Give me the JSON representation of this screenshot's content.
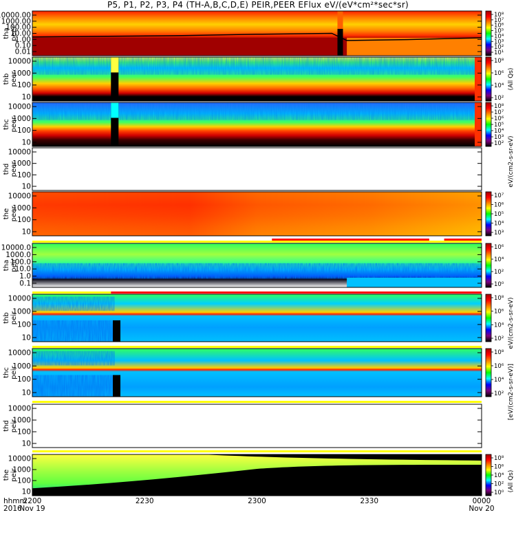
{
  "title": "P5, P1, P2, P3, P4 (TH-A,B,C,D,E) PEIR,PEER EFlux eV/(eV*cm²*sec*sr)",
  "colorbar_unit_labels": [
    "(All Qs)",
    "eV/(cm2-s-sr-eV)",
    "[eV/(cm2-s-sr-eV)]",
    "eV/(cm2-s-sr-eV)",
    "(All Qs)"
  ],
  "chart_data": {
    "type": "heatmap",
    "x_axis": {
      "tick_labels": [
        "2200",
        "2230",
        "2300",
        "2330",
        "0000"
      ],
      "x_values_minutes_after_2200": [
        0,
        30,
        60,
        90,
        120
      ],
      "row_labels": [
        "hhmm",
        "2016"
      ],
      "date_labels": [
        {
          "x_minutes_after_2200": 0,
          "text": "Nov 19"
        },
        {
          "x_minutes_after_2200": 120,
          "text": "Nov 20"
        }
      ]
    },
    "panels": [
      {
        "name": "tha peer",
        "label": [
          "tha",
          "peer"
        ],
        "y_scale": "log",
        "yticks": [
          "10000.00",
          "1000.00",
          "100.00",
          "10.00",
          "1.00",
          "0.10",
          "0.01"
        ],
        "has_data": true,
        "colorbar_ticks": [
          "10⁸",
          "10⁷",
          "10⁶",
          "10⁵",
          "10⁴",
          "10³",
          "10²",
          "10¹"
        ]
      },
      {
        "name": "thb peer",
        "label": [
          "thb",
          "peer"
        ],
        "y_scale": "log",
        "yticks": [
          "10000",
          "1000",
          "100",
          "10"
        ],
        "has_data": true,
        "colorbar_ticks": [
          "10⁸",
          "10⁶",
          "10⁴",
          "10²"
        ]
      },
      {
        "name": "thc peer",
        "label": [
          "thc",
          "peer"
        ],
        "y_scale": "log",
        "yticks": [
          "10000",
          "1000",
          "100",
          "10"
        ],
        "has_data": true,
        "colorbar_ticks": [
          "10⁸",
          "10⁷",
          "10⁶",
          "10⁵",
          "10⁴",
          "10³",
          "10²"
        ]
      },
      {
        "name": "thd peer",
        "label": [
          "thd",
          "peer"
        ],
        "y_scale": "log",
        "yticks": [
          "10000",
          "1000",
          "100",
          "10"
        ],
        "has_data": false,
        "colorbar_ticks": []
      },
      {
        "name": "the peer",
        "label": [
          "the",
          "peer"
        ],
        "y_scale": "log",
        "yticks": [
          "10000",
          "1000",
          "100",
          "10"
        ],
        "has_data": true,
        "colorbar_ticks": [
          "10⁷",
          "10⁶",
          "10⁵",
          "10⁴",
          "10³"
        ]
      },
      {
        "name": "tha peir",
        "label": [
          "tha",
          "peir"
        ],
        "y_scale": "log",
        "yticks": [
          "10000.0",
          "1000.0",
          "100.0",
          "10.0",
          "1.0",
          "0.1"
        ],
        "has_data": true,
        "colorbar_ticks": [
          "10⁶",
          "10⁴",
          "10²",
          "10⁰"
        ]
      },
      {
        "name": "thb peir",
        "label": [
          "thb",
          "peir"
        ],
        "y_scale": "log",
        "yticks": [
          "10000",
          "1000",
          "100",
          "10"
        ],
        "has_data": true,
        "colorbar_ticks": [
          "10⁸",
          "10⁶",
          "10⁴",
          "10²"
        ]
      },
      {
        "name": "thc peir",
        "label": [
          "thc",
          "peir"
        ],
        "y_scale": "log",
        "yticks": [
          "10000",
          "1000",
          "100",
          "10"
        ],
        "has_data": true,
        "colorbar_ticks": [
          "10⁸",
          "10⁶",
          "10⁴",
          "10²"
        ]
      },
      {
        "name": "thd peir",
        "label": [
          "thd",
          "peir"
        ],
        "y_scale": "log",
        "yticks": [
          "10000",
          "1000",
          "100",
          "10"
        ],
        "has_data": false,
        "colorbar_ticks": []
      },
      {
        "name": "the peir",
        "label": [
          "the",
          "peir"
        ],
        "y_scale": "log",
        "yticks": [
          "10000",
          "1000",
          "100",
          "10"
        ],
        "has_data": true,
        "colorbar_ticks": [
          "10⁸",
          "10⁶",
          "10⁴",
          "10²",
          "10⁰"
        ]
      }
    ],
    "colormap": [
      "#000000",
      "#7f007f",
      "#0000ff",
      "#00ffff",
      "#00ff00",
      "#ffff00",
      "#ff8000",
      "#ff0000",
      "#a00000"
    ],
    "grid": false,
    "legend": "colorbars-right"
  }
}
